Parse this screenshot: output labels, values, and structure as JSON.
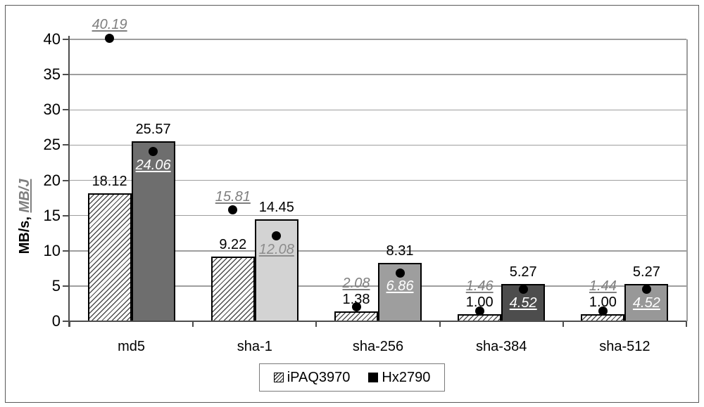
{
  "chart_data": {
    "type": "bar",
    "title": "",
    "ylabel": "MB/s, MB/J",
    "ylabel_parts": {
      "main": "MB/s, ",
      "secondary": "MB/J"
    },
    "ylim": [
      0,
      40
    ],
    "yticks": [
      "0",
      "5",
      "10",
      "15",
      "20",
      "25",
      "30",
      "35",
      "40"
    ],
    "ytick_values": [
      0,
      5,
      10,
      15,
      20,
      25,
      30,
      35,
      40
    ],
    "grid": true,
    "categories": [
      "md5",
      "sha-1",
      "sha-256",
      "sha-384",
      "sha-512"
    ],
    "series": [
      {
        "name": "iPAQ3970",
        "bar_style": "hatched",
        "mbs_values": [
          18.12,
          9.22,
          1.38,
          1.0,
          1.0
        ],
        "mbs_labels": [
          "18.12",
          "9.22",
          "1.38",
          "1.00",
          "1.00"
        ],
        "mbj_values": [
          40.19,
          15.81,
          2.08,
          1.46,
          1.44
        ],
        "mbj_labels": [
          "40.19",
          "15.81",
          "2.08",
          "1.46",
          "1.44"
        ],
        "mbj_label_colors": [
          "#7f7f7f",
          "#7f7f7f",
          "#7f7f7f",
          "#7f7f7f",
          "#7f7f7f"
        ]
      },
      {
        "name": "Hx2790",
        "bar_style": "solid",
        "bar_colors": [
          "#6e6e6e",
          "#d3d3d3",
          "#9e9e9e",
          "#4d4d4d",
          "#989898"
        ],
        "mbs_values": [
          25.57,
          14.45,
          8.31,
          5.27,
          5.27
        ],
        "mbs_labels": [
          "25.57",
          "14.45",
          "8.31",
          "5.27",
          "5.27"
        ],
        "mbj_values": [
          24.06,
          12.08,
          6.86,
          4.52,
          4.52
        ],
        "mbj_labels": [
          "24.06",
          "12.08",
          "6.86",
          "4.52",
          "4.52"
        ],
        "mbj_label_colors": [
          "#ffffff",
          "#8c8c8c",
          "#ffffff",
          "#ffffff",
          "#ffffff"
        ]
      }
    ],
    "point_color": "#000000",
    "gridline_color": "#9e9e9e",
    "legend": {
      "items": [
        "iPAQ3970",
        "Hx2790"
      ],
      "position": "bottom"
    }
  }
}
